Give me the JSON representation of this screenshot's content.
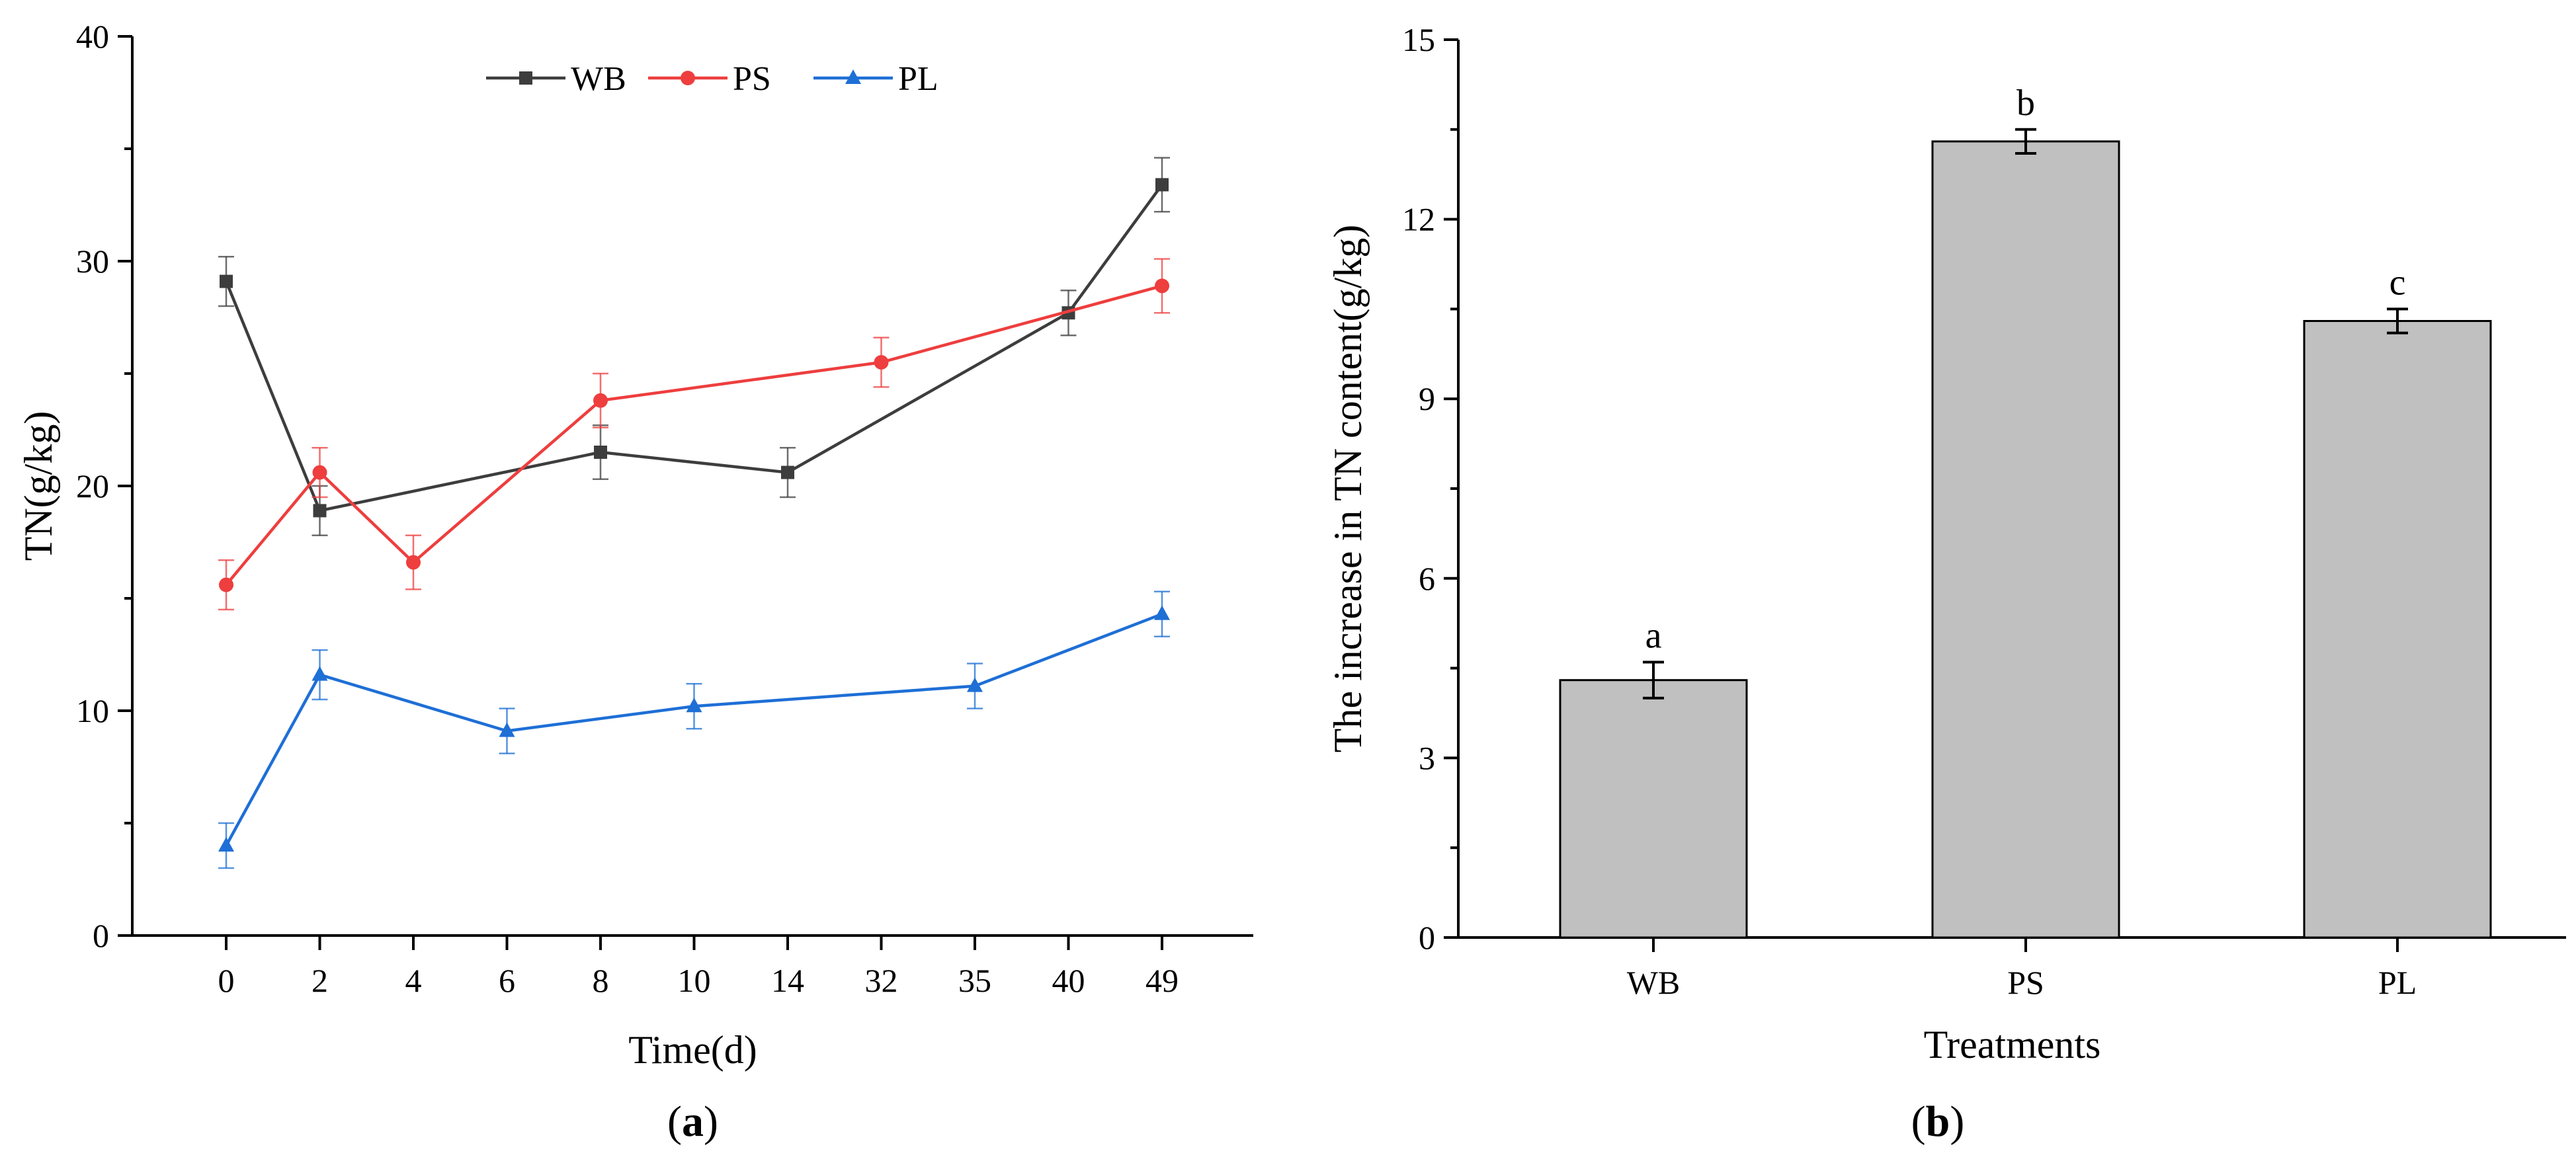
{
  "panels": {
    "a": {
      "label": "a"
    },
    "b": {
      "label": "b"
    }
  },
  "chart_data": [
    {
      "type": "line",
      "xlabel": "Time(d)",
      "ylabel": "TN(g/kg)",
      "ylim": [
        0,
        40
      ],
      "yticks": [
        0,
        10,
        20,
        30,
        40
      ],
      "x": [
        "0",
        "2",
        "4",
        "6",
        "8",
        "10",
        "14",
        "32",
        "35",
        "40",
        "49"
      ],
      "legend_position": "top",
      "grid": false,
      "series": [
        {
          "name": "WB",
          "color": "#3d3d3d",
          "marker": "square",
          "points": [
            {
              "x": "0",
              "y": 29.1,
              "err": 1.1
            },
            {
              "x": "2",
              "y": 18.9,
              "err": 1.1
            },
            {
              "x": "8",
              "y": 21.5,
              "err": 1.2
            },
            {
              "x": "14",
              "y": 20.6,
              "err": 1.1
            },
            {
              "x": "40",
              "y": 27.7,
              "err": 1.0
            },
            {
              "x": "49",
              "y": 33.4,
              "err": 1.2
            }
          ]
        },
        {
          "name": "PS",
          "color": "#ee3e3e",
          "marker": "circle",
          "points": [
            {
              "x": "0",
              "y": 15.6,
              "err": 1.1
            },
            {
              "x": "2",
              "y": 20.6,
              "err": 1.1
            },
            {
              "x": "4",
              "y": 16.6,
              "err": 1.2
            },
            {
              "x": "8",
              "y": 23.8,
              "err": 1.2
            },
            {
              "x": "32",
              "y": 25.5,
              "err": 1.1
            },
            {
              "x": "49",
              "y": 28.9,
              "err": 1.2
            }
          ]
        },
        {
          "name": "PL",
          "color": "#1e6fd6",
          "marker": "triangle",
          "points": [
            {
              "x": "0",
              "y": 4.0,
              "err": 1.0
            },
            {
              "x": "2",
              "y": 11.6,
              "err": 1.1
            },
            {
              "x": "6",
              "y": 9.1,
              "err": 1.0
            },
            {
              "x": "10",
              "y": 10.2,
              "err": 1.0
            },
            {
              "x": "35",
              "y": 11.1,
              "err": 1.0
            },
            {
              "x": "49",
              "y": 14.3,
              "err": 1.0
            }
          ]
        }
      ]
    },
    {
      "type": "bar",
      "xlabel": "Treatments",
      "ylabel": "The increase in TN content(g/kg)",
      "ylim": [
        0,
        15
      ],
      "yticks": [
        0,
        3,
        6,
        9,
        12,
        15
      ],
      "categories": [
        "WB",
        "PS",
        "PL"
      ],
      "values": [
        4.3,
        13.3,
        10.3
      ],
      "errors": [
        0.3,
        0.2,
        0.2
      ],
      "significance": [
        "a",
        "b",
        "c"
      ],
      "bar_color": "#c0c0c0",
      "grid": false
    }
  ]
}
